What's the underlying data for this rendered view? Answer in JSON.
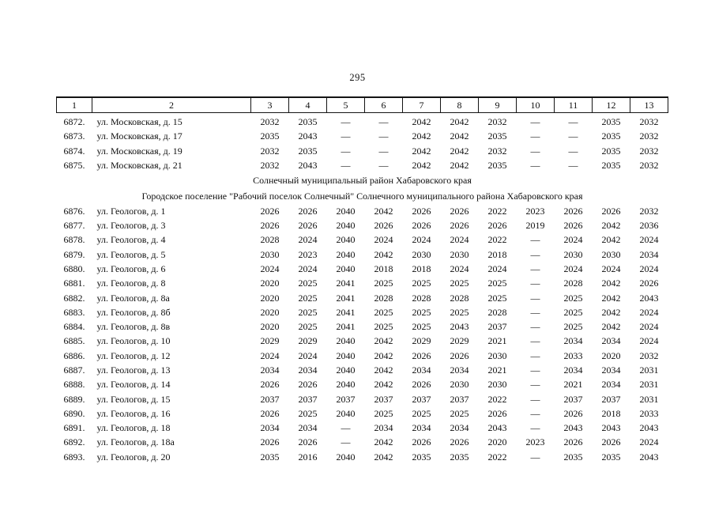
{
  "page_number": "295",
  "table": {
    "column_headers": [
      "1",
      "2",
      "3",
      "4",
      "5",
      "6",
      "7",
      "8",
      "9",
      "10",
      "11",
      "12",
      "13"
    ],
    "sections": [
      {
        "title": null,
        "rows": [
          {
            "num": "6872.",
            "address": "ул. Московская, д. 15",
            "values": [
              "2032",
              "2035",
              "—",
              "—",
              "2042",
              "2042",
              "2032",
              "—",
              "—",
              "2035",
              "2032"
            ]
          },
          {
            "num": "6873.",
            "address": "ул. Московская, д. 17",
            "values": [
              "2035",
              "2043",
              "—",
              "—",
              "2042",
              "2042",
              "2035",
              "—",
              "—",
              "2035",
              "2032"
            ]
          },
          {
            "num": "6874.",
            "address": "ул. Московская, д. 19",
            "values": [
              "2032",
              "2035",
              "—",
              "—",
              "2042",
              "2042",
              "2032",
              "—",
              "—",
              "2035",
              "2032"
            ]
          },
          {
            "num": "6875.",
            "address": "ул. Московская, д. 21",
            "values": [
              "2032",
              "2043",
              "—",
              "—",
              "2042",
              "2042",
              "2035",
              "—",
              "—",
              "2035",
              "2032"
            ]
          }
        ]
      },
      {
        "title": "Солнечный муниципальный район Хабаровского края",
        "rows": []
      },
      {
        "title": "Городское поселение \"Рабочий поселок Солнечный\" Солнечного муниципального района Хабаровского края",
        "rows": [
          {
            "num": "6876.",
            "address": "ул. Геологов, д. 1",
            "values": [
              "2026",
              "2026",
              "2040",
              "2042",
              "2026",
              "2026",
              "2022",
              "2023",
              "2026",
              "2026",
              "2032"
            ]
          },
          {
            "num": "6877.",
            "address": "ул. Геологов, д. 3",
            "values": [
              "2026",
              "2026",
              "2040",
              "2026",
              "2026",
              "2026",
              "2026",
              "2019",
              "2026",
              "2042",
              "2036"
            ]
          },
          {
            "num": "6878.",
            "address": "ул. Геологов, д. 4",
            "values": [
              "2028",
              "2024",
              "2040",
              "2024",
              "2024",
              "2024",
              "2022",
              "—",
              "2024",
              "2042",
              "2024"
            ]
          },
          {
            "num": "6879.",
            "address": "ул. Геологов, д. 5",
            "values": [
              "2030",
              "2023",
              "2040",
              "2042",
              "2030",
              "2030",
              "2018",
              "—",
              "2030",
              "2030",
              "2034"
            ]
          },
          {
            "num": "6880.",
            "address": "ул. Геологов, д. 6",
            "values": [
              "2024",
              "2024",
              "2040",
              "2018",
              "2018",
              "2024",
              "2024",
              "—",
              "2024",
              "2024",
              "2024"
            ]
          },
          {
            "num": "6881.",
            "address": "ул. Геологов, д. 8",
            "values": [
              "2020",
              "2025",
              "2041",
              "2025",
              "2025",
              "2025",
              "2025",
              "—",
              "2028",
              "2042",
              "2026"
            ]
          },
          {
            "num": "6882.",
            "address": "ул. Геологов, д. 8а",
            "values": [
              "2020",
              "2025",
              "2041",
              "2028",
              "2028",
              "2028",
              "2025",
              "—",
              "2025",
              "2042",
              "2043"
            ]
          },
          {
            "num": "6883.",
            "address": "ул. Геологов, д. 8б",
            "values": [
              "2020",
              "2025",
              "2041",
              "2025",
              "2025",
              "2025",
              "2028",
              "—",
              "2025",
              "2042",
              "2024"
            ]
          },
          {
            "num": "6884.",
            "address": "ул. Геологов, д. 8в",
            "values": [
              "2020",
              "2025",
              "2041",
              "2025",
              "2025",
              "2043",
              "2037",
              "—",
              "2025",
              "2042",
              "2024"
            ]
          },
          {
            "num": "6885.",
            "address": "ул. Геологов, д. 10",
            "values": [
              "2029",
              "2029",
              "2040",
              "2042",
              "2029",
              "2029",
              "2021",
              "—",
              "2034",
              "2034",
              "2024"
            ]
          },
          {
            "num": "6886.",
            "address": "ул. Геологов, д. 12",
            "values": [
              "2024",
              "2024",
              "2040",
              "2042",
              "2026",
              "2026",
              "2030",
              "—",
              "2033",
              "2020",
              "2032"
            ]
          },
          {
            "num": "6887.",
            "address": "ул. Геологов, д. 13",
            "values": [
              "2034",
              "2034",
              "2040",
              "2042",
              "2034",
              "2034",
              "2021",
              "—",
              "2034",
              "2034",
              "2031"
            ]
          },
          {
            "num": "6888.",
            "address": "ул. Геологов, д. 14",
            "values": [
              "2026",
              "2026",
              "2040",
              "2042",
              "2026",
              "2030",
              "2030",
              "—",
              "2021",
              "2034",
              "2031"
            ]
          },
          {
            "num": "6889.",
            "address": "ул. Геологов, д. 15",
            "values": [
              "2037",
              "2037",
              "2037",
              "2037",
              "2037",
              "2037",
              "2022",
              "—",
              "2037",
              "2037",
              "2031"
            ]
          },
          {
            "num": "6890.",
            "address": "ул. Геологов, д. 16",
            "values": [
              "2026",
              "2025",
              "2040",
              "2025",
              "2025",
              "2025",
              "2026",
              "—",
              "2026",
              "2018",
              "2033"
            ]
          },
          {
            "num": "6891.",
            "address": "ул. Геологов, д. 18",
            "values": [
              "2034",
              "2034",
              "—",
              "2034",
              "2034",
              "2034",
              "2043",
              "—",
              "2043",
              "2043",
              "2043"
            ]
          },
          {
            "num": "6892.",
            "address": "ул. Геологов, д. 18а",
            "values": [
              "2026",
              "2026",
              "—",
              "2042",
              "2026",
              "2026",
              "2020",
              "2023",
              "2026",
              "2026",
              "2024"
            ]
          },
          {
            "num": "6893.",
            "address": "ул. Геологов, д. 20",
            "values": [
              "2035",
              "2016",
              "2040",
              "2042",
              "2035",
              "2035",
              "2022",
              "—",
              "2035",
              "2035",
              "2043"
            ]
          }
        ]
      }
    ]
  }
}
